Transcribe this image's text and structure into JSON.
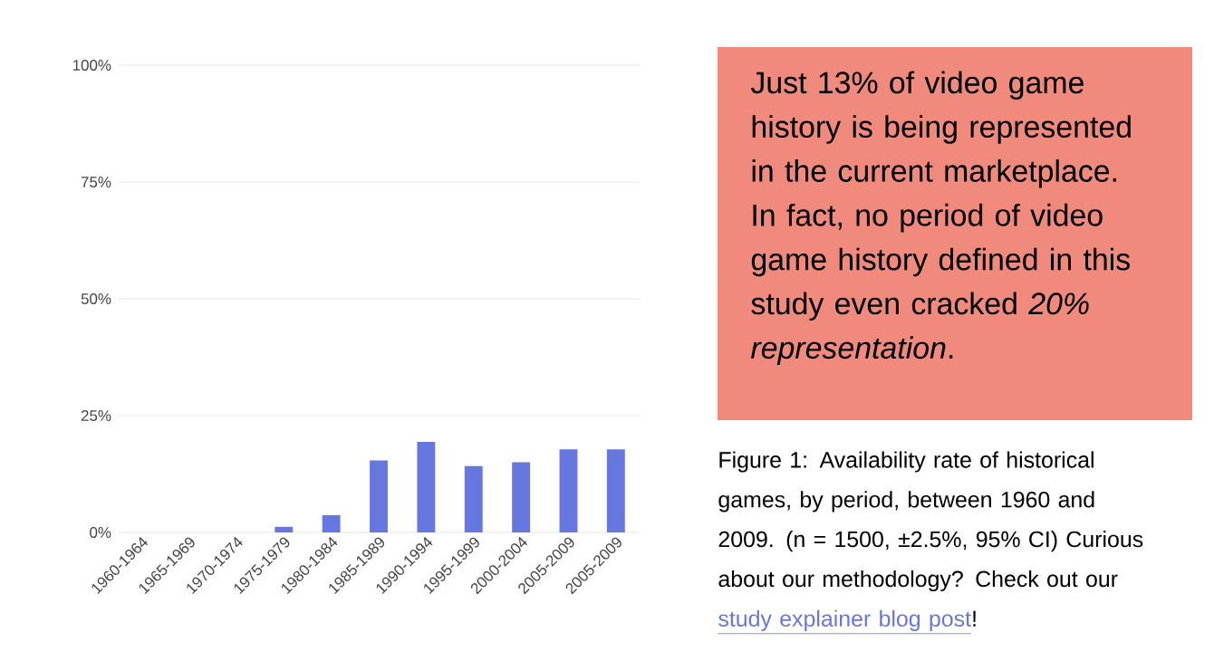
{
  "chart_data": {
    "type": "bar",
    "categories": [
      "1960-1964",
      "1965-1969",
      "1970-1974",
      "1975-1979",
      "1980-1984",
      "1985-1989",
      "1990-1994",
      "1995-1999",
      "2000-2004",
      "2005-2009",
      "2005-2009"
    ],
    "values": [
      0,
      0,
      0,
      1.2,
      3.7,
      15.4,
      19.4,
      14.2,
      15,
      17.8,
      17.8
    ],
    "color": "#6677e0",
    "ylim": [
      0,
      100
    ],
    "yticks": [
      {
        "value": 0,
        "label": "0%"
      },
      {
        "value": 25,
        "label": "25%"
      },
      {
        "value": 50,
        "label": "50%"
      },
      {
        "value": 75,
        "label": "75%"
      },
      {
        "value": 100,
        "label": "100%"
      }
    ],
    "grid": "y",
    "annotations": [
      "Just 13% of video game history is being represented in the current marketplace. In fact, no period of video game history defined in this study even cracked *20% representation*.",
      "Figure 1: Availability rate of historical games, by period, between 1960 and 2009. (n = 1500, ±2.5%, 95% CI) Curious about our methodology? Check out our",
      "study explainer blog post",
      "!"
    ]
  }
}
